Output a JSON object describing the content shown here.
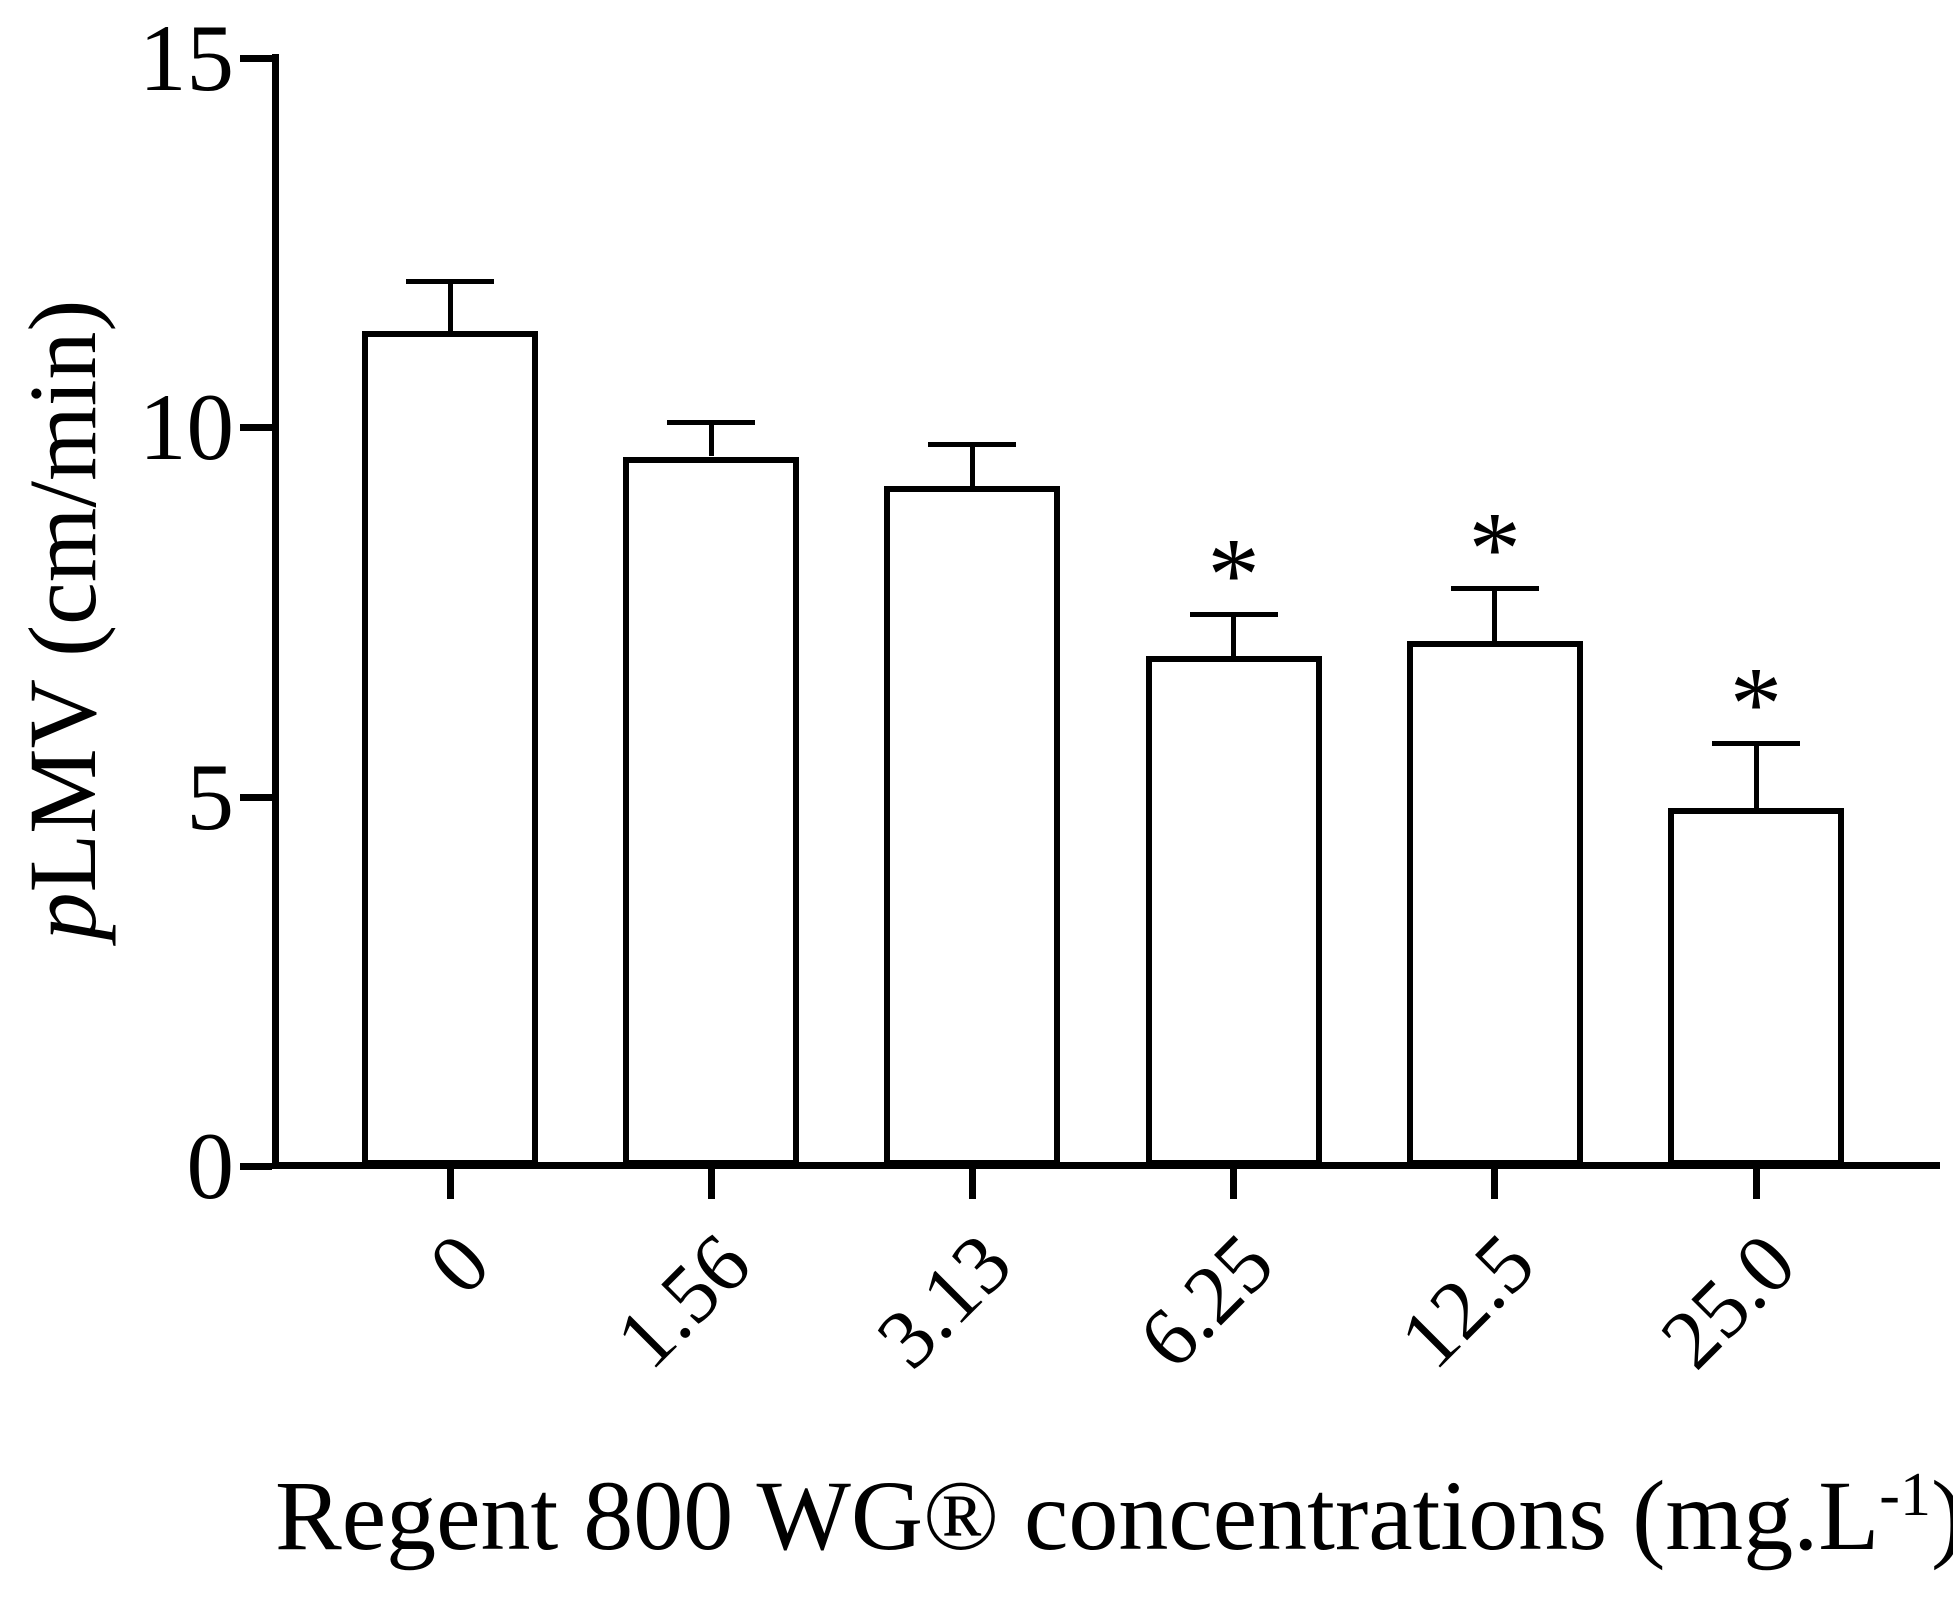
{
  "figure": {
    "y_axis_title": {
      "italic": "p",
      "rest": "LMV (cm/min)"
    },
    "x_axis_title": {
      "prefix": "Regent 800 WG® concentrations (mg.L",
      "superscript": "-1",
      "suffix": ")"
    }
  },
  "chart_data": {
    "type": "bar",
    "title": "",
    "xlabel": "Regent 800 WG® concentrations (mg.L-1)",
    "ylabel": "pLMV (cm/min)",
    "categories": [
      "0",
      "1.56",
      "3.13",
      "6.25",
      "12.5",
      "25.0"
    ],
    "values": [
      11.3,
      9.6,
      9.2,
      6.9,
      7.1,
      4.85
    ],
    "errors": [
      0.7,
      0.5,
      0.6,
      0.6,
      0.75,
      0.9
    ],
    "significance": [
      "",
      "",
      "",
      "*",
      "*",
      "*"
    ],
    "error_bar_style": "upper SD whisker with cap",
    "ylim": [
      0,
      15
    ],
    "yticks": {
      "values": [
        0,
        5,
        10,
        15
      ],
      "labels": [
        "0",
        "5",
        "10",
        "15"
      ]
    },
    "grid": "off",
    "legend": "none",
    "bar_fill": "#ffffff",
    "line_color": "#000000",
    "background": "#ffffff"
  }
}
